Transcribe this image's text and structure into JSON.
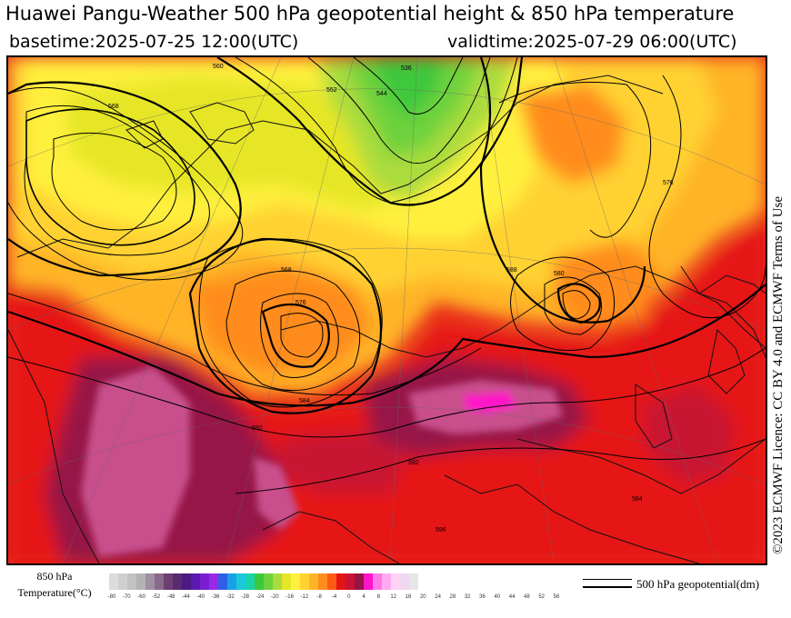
{
  "header": {
    "title": "Huawei Pangu-Weather 500 hPa geopotential height & 850 hPa temperature",
    "basetime": "basetime:2025-07-25 12:00(UTC)",
    "validtime": "validtime:2025-07-29 06:00(UTC)"
  },
  "credit": "©2023 ECMWF Licence: CC BY 4.0 and ECMWF Terms of Use",
  "colorbar": {
    "label_line1": "850 hPa",
    "label_line2": "Temperature(°C)",
    "ticks": [
      "-80",
      "-70",
      "-60",
      "-52",
      "-48",
      "-44",
      "-40",
      "-36",
      "-32",
      "-28",
      "-24",
      "-20",
      "-16",
      "-12",
      "-8",
      "-4",
      "0",
      "4",
      "8",
      "12",
      "16",
      "20",
      "24",
      "28",
      "32",
      "36",
      "40",
      "44",
      "48",
      "52",
      "56"
    ],
    "colors": [
      "#dcdcdc",
      "#cfcfcf",
      "#c2c2c2",
      "#b3b3b3",
      "#a08fa0",
      "#8a6a8a",
      "#6e3f73",
      "#5a2a6e",
      "#4b1a82",
      "#5a1ab0",
      "#7a1ed2",
      "#9a28e6",
      "#2f5fe6",
      "#1aa0e6",
      "#1ac8dc",
      "#1ad2a8",
      "#3cc83c",
      "#6ed23c",
      "#aadc3c",
      "#e6e628",
      "#fff03c",
      "#ffd232",
      "#ffb428",
      "#ff8c1e",
      "#ff5a14",
      "#e61414",
      "#c81432",
      "#961446",
      "#ff14c8",
      "#ff78e6",
      "#ffaaf0",
      "#ffd2f5",
      "#f0d7f0",
      "#e6e6e6"
    ]
  },
  "legend": {
    "label": "500 hPa geopotential(dm)"
  },
  "map": {
    "contour_labels": [
      "536",
      "544",
      "552",
      "560",
      "568",
      "576",
      "584",
      "592",
      "588",
      "580",
      "568",
      "576",
      "584",
      "592",
      "596"
    ]
  }
}
